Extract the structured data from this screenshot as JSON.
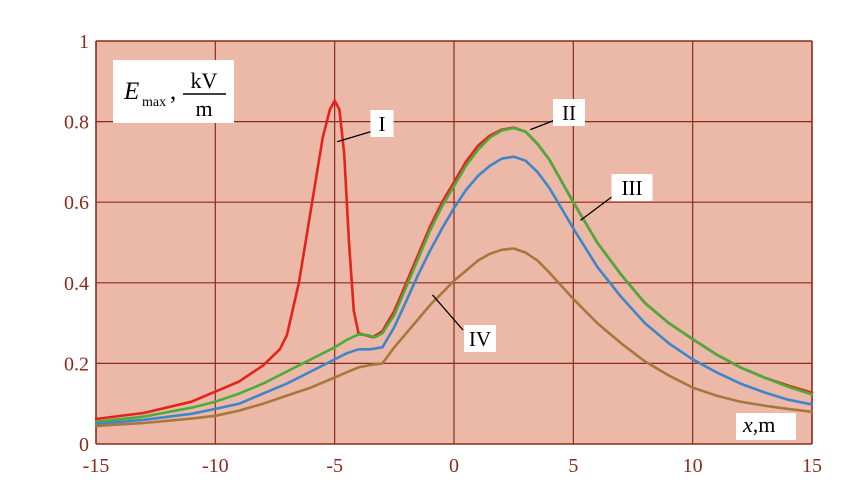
{
  "chart_data": {
    "type": "line",
    "xlim": [
      -15,
      15
    ],
    "ylim": [
      0,
      1
    ],
    "x_ticks": [
      "-15",
      "-10",
      "-5",
      "0",
      "5",
      "10",
      "15"
    ],
    "y_ticks": [
      "0",
      "0.2",
      "0.4",
      "0.6",
      "0.8",
      "1"
    ],
    "grid": true,
    "xlabel": {
      "italic": "x",
      "rest": ",m"
    },
    "ylabel": {
      "base": "E",
      "sub": "max",
      "sep": ",",
      "num": "kV",
      "den": "m"
    },
    "colors": {
      "plot_bg": "#ecb8a7",
      "grid": "#8b2b1e",
      "tick_text": "#8b2b1e",
      "I": "#e4241c",
      "II": "#4aac3a",
      "III": "#3e86cc",
      "IV": "#a8773c"
    },
    "series": [
      {
        "name": "I",
        "color": "#e4241c",
        "points": [
          [
            -15,
            0.062
          ],
          [
            -13,
            0.077
          ],
          [
            -11,
            0.105
          ],
          [
            -9,
            0.155
          ],
          [
            -8,
            0.195
          ],
          [
            -7.3,
            0.235
          ],
          [
            -7,
            0.27
          ],
          [
            -6.5,
            0.4
          ],
          [
            -6,
            0.58
          ],
          [
            -5.5,
            0.76
          ],
          [
            -5.2,
            0.83
          ],
          [
            -5,
            0.852
          ],
          [
            -4.8,
            0.83
          ],
          [
            -4.6,
            0.72
          ],
          [
            -4.4,
            0.5
          ],
          [
            -4.2,
            0.33
          ],
          [
            -4,
            0.275
          ],
          [
            -3.7,
            0.27
          ],
          [
            -3.4,
            0.265
          ],
          [
            -3,
            0.28
          ],
          [
            -2.5,
            0.33
          ],
          [
            -2,
            0.4
          ],
          [
            -1.5,
            0.47
          ],
          [
            -1,
            0.54
          ],
          [
            -0.5,
            0.6
          ],
          [
            0,
            0.65
          ],
          [
            0.5,
            0.7
          ],
          [
            1,
            0.74
          ],
          [
            1.5,
            0.765
          ],
          [
            2,
            0.78
          ],
          [
            2.5,
            0.785
          ],
          [
            3,
            0.775
          ],
          [
            3.5,
            0.745
          ],
          [
            4,
            0.705
          ],
          [
            5,
            0.6
          ],
          [
            6,
            0.5
          ],
          [
            7,
            0.42
          ],
          [
            8,
            0.35
          ],
          [
            9,
            0.3
          ],
          [
            10,
            0.26
          ],
          [
            11,
            0.222
          ],
          [
            12,
            0.19
          ],
          [
            13,
            0.165
          ],
          [
            14,
            0.145
          ],
          [
            15,
            0.127
          ]
        ]
      },
      {
        "name": "II",
        "color": "#4aac3a",
        "points": [
          [
            -15,
            0.055
          ],
          [
            -13,
            0.068
          ],
          [
            -11,
            0.09
          ],
          [
            -10,
            0.105
          ],
          [
            -9,
            0.125
          ],
          [
            -8,
            0.15
          ],
          [
            -7,
            0.18
          ],
          [
            -6,
            0.21
          ],
          [
            -5,
            0.24
          ],
          [
            -4.5,
            0.258
          ],
          [
            -4,
            0.272
          ],
          [
            -3.6,
            0.27
          ],
          [
            -3.3,
            0.265
          ],
          [
            -3,
            0.275
          ],
          [
            -2.5,
            0.32
          ],
          [
            -2,
            0.39
          ],
          [
            -1.5,
            0.46
          ],
          [
            -1,
            0.53
          ],
          [
            -0.5,
            0.59
          ],
          [
            0,
            0.64
          ],
          [
            0.5,
            0.69
          ],
          [
            1,
            0.73
          ],
          [
            1.5,
            0.76
          ],
          [
            2,
            0.778
          ],
          [
            2.5,
            0.784
          ],
          [
            3,
            0.775
          ],
          [
            3.5,
            0.745
          ],
          [
            4,
            0.705
          ],
          [
            5,
            0.6
          ],
          [
            6,
            0.5
          ],
          [
            7,
            0.42
          ],
          [
            8,
            0.35
          ],
          [
            9,
            0.3
          ],
          [
            10,
            0.26
          ],
          [
            11,
            0.222
          ],
          [
            12,
            0.19
          ],
          [
            13,
            0.165
          ],
          [
            14,
            0.142
          ],
          [
            15,
            0.123
          ]
        ]
      },
      {
        "name": "III",
        "color": "#3e86cc",
        "points": [
          [
            -15,
            0.05
          ],
          [
            -13,
            0.06
          ],
          [
            -11,
            0.075
          ],
          [
            -10,
            0.087
          ],
          [
            -9,
            0.1
          ],
          [
            -8,
            0.125
          ],
          [
            -7,
            0.15
          ],
          [
            -6,
            0.18
          ],
          [
            -5,
            0.21
          ],
          [
            -4.5,
            0.225
          ],
          [
            -4,
            0.235
          ],
          [
            -3.5,
            0.235
          ],
          [
            -3,
            0.24
          ],
          [
            -2.5,
            0.29
          ],
          [
            -2,
            0.355
          ],
          [
            -1.5,
            0.42
          ],
          [
            -1,
            0.48
          ],
          [
            -0.5,
            0.535
          ],
          [
            0,
            0.585
          ],
          [
            0.5,
            0.63
          ],
          [
            1,
            0.665
          ],
          [
            1.5,
            0.69
          ],
          [
            2,
            0.708
          ],
          [
            2.5,
            0.713
          ],
          [
            3,
            0.703
          ],
          [
            3.5,
            0.675
          ],
          [
            4,
            0.635
          ],
          [
            5,
            0.535
          ],
          [
            6,
            0.44
          ],
          [
            7,
            0.365
          ],
          [
            8,
            0.3
          ],
          [
            9,
            0.25
          ],
          [
            10,
            0.21
          ],
          [
            11,
            0.178
          ],
          [
            12,
            0.15
          ],
          [
            13,
            0.128
          ],
          [
            14,
            0.11
          ],
          [
            15,
            0.098
          ]
        ]
      },
      {
        "name": "IV",
        "color": "#a8773c",
        "points": [
          [
            -15,
            0.045
          ],
          [
            -13,
            0.052
          ],
          [
            -11,
            0.063
          ],
          [
            -10,
            0.07
          ],
          [
            -9,
            0.083
          ],
          [
            -8,
            0.1
          ],
          [
            -7,
            0.12
          ],
          [
            -6,
            0.14
          ],
          [
            -5,
            0.165
          ],
          [
            -4.5,
            0.178
          ],
          [
            -4,
            0.19
          ],
          [
            -3.5,
            0.196
          ],
          [
            -3,
            0.2
          ],
          [
            -2.5,
            0.24
          ],
          [
            -2,
            0.275
          ],
          [
            -1.5,
            0.31
          ],
          [
            -1,
            0.345
          ],
          [
            -0.5,
            0.375
          ],
          [
            0,
            0.405
          ],
          [
            0.5,
            0.43
          ],
          [
            1,
            0.455
          ],
          [
            1.5,
            0.472
          ],
          [
            2,
            0.482
          ],
          [
            2.5,
            0.485
          ],
          [
            3,
            0.475
          ],
          [
            3.5,
            0.455
          ],
          [
            4,
            0.425
          ],
          [
            5,
            0.36
          ],
          [
            6,
            0.3
          ],
          [
            7,
            0.25
          ],
          [
            8,
            0.205
          ],
          [
            9,
            0.17
          ],
          [
            10,
            0.14
          ],
          [
            11,
            0.12
          ],
          [
            12,
            0.105
          ],
          [
            13,
            0.095
          ],
          [
            14,
            0.087
          ],
          [
            15,
            0.08
          ]
        ]
      }
    ],
    "annotations": [
      {
        "text": "I",
        "series": "I",
        "at": [
          -4.9,
          0.75
        ]
      },
      {
        "text": "II",
        "series": "II",
        "at": [
          3.2,
          0.78
        ]
      },
      {
        "text": "III",
        "series": "III",
        "at": [
          5.3,
          0.555
        ]
      },
      {
        "text": "IV",
        "series": "IV",
        "at": [
          -0.9,
          0.37
        ]
      }
    ]
  }
}
